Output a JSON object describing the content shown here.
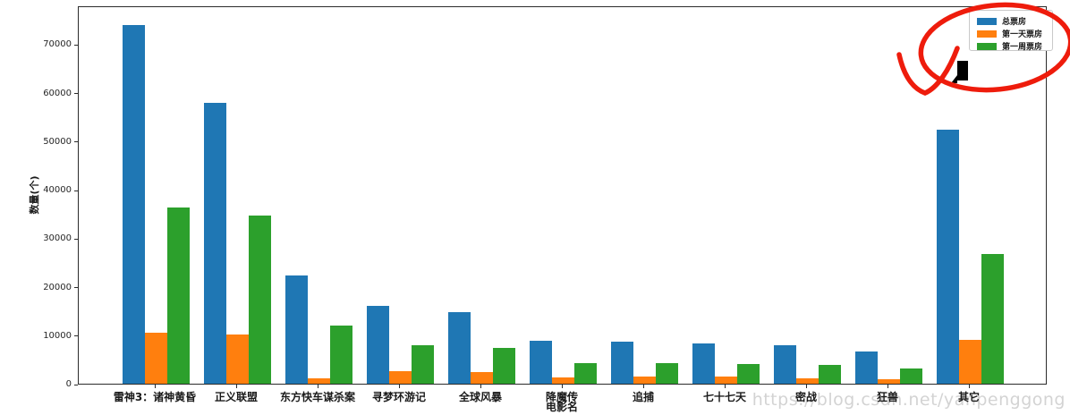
{
  "figure": {
    "background": "#ffffff",
    "watermark": "https://blog.csdn.net/yanpenggong"
  },
  "chart_data": {
    "type": "bar",
    "title": "",
    "xlabel": "电影名",
    "ylabel": "数量(个)",
    "categories": [
      "雷神3：诸神黄昏",
      "正义联盟",
      "东方快车谋杀案",
      "寻梦环游记",
      "全球风暴",
      "降魔传",
      "追捕",
      "七十七天",
      "密战",
      "狂兽",
      "其它"
    ],
    "series": [
      {
        "name": "总票房",
        "color": "#1f77b4",
        "values": [
          74000,
          57900,
          22300,
          16000,
          14800,
          8800,
          8700,
          8300,
          7900,
          6600,
          52300
        ]
      },
      {
        "name": "第一天票房",
        "color": "#ff7f0e",
        "values": [
          10500,
          10100,
          1200,
          2600,
          2400,
          1300,
          1400,
          1400,
          1200,
          1000,
          9000
        ]
      },
      {
        "name": "第一周票房",
        "color": "#2ca02c",
        "values": [
          36300,
          34600,
          11900,
          8000,
          7400,
          4300,
          4300,
          4100,
          3900,
          3200,
          26700
        ]
      }
    ],
    "ylim": [
      0,
      78000
    ],
    "yticks": [
      0,
      10000,
      20000,
      30000,
      40000,
      50000,
      60000,
      70000
    ],
    "grid": false,
    "legend_position": "upper right"
  },
  "annotations": {
    "red_mark": {
      "shape": "hand-drawn ellipse with check mark around legend",
      "color": "#ee1c0c"
    },
    "black_mark": {
      "shape": "pen cursor rectangle",
      "color": "#000000"
    }
  }
}
